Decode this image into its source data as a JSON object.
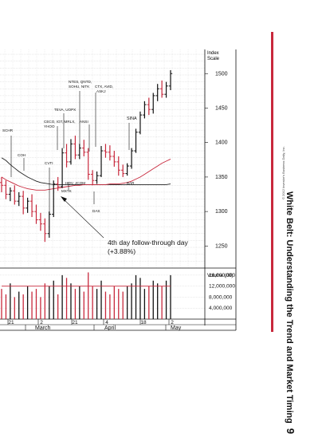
{
  "page": {
    "side_title": "White Belt: Understanding the Trend and Market Timing",
    "page_number": "9",
    "copyright": "© 2012 Investor's Business Daily, Inc.",
    "accent_color": "#c8283c"
  },
  "chart_data": {
    "type": "candlestick",
    "title": "",
    "price_axis": {
      "label_line1": "Index",
      "label_line2": "Scale",
      "ticks": [
        1250,
        1300,
        1350,
        1400,
        1450,
        1500
      ],
      "ylim": [
        1218,
        1535
      ]
    },
    "volume_axis": {
      "label": "Volume (00)",
      "ticks": [
        "16,000,000",
        "12,000,000",
        "8,000,000",
        "4,000,000"
      ],
      "tick_values": [
        16000000,
        12000000,
        8000000,
        4000000
      ],
      "ylim": [
        0,
        18000000
      ]
    },
    "x_axis": {
      "day_labels": [
        "21",
        "2",
        "21",
        "4",
        "18",
        "2"
      ],
      "month_labels": [
        "March",
        "April",
        "May"
      ]
    },
    "grid": true,
    "annotations": {
      "leaders": [
        {
          "text": "SCHR"
        },
        {
          "text": "COH"
        },
        {
          "text": "CVTI"
        },
        {
          "text": "CECO, IGT, MRLX,"
        },
        {
          "text": "YHOO"
        },
        {
          "text": "TEVA, UOPX"
        },
        {
          "text": "NTES, QNTD,"
        },
        {
          "text": "SOHU, NITK"
        },
        {
          "text": "CTX, AVID,"
        },
        {
          "text": "ASKJ"
        },
        {
          "text": "ANSI"
        },
        {
          "text": "HOV, JCOM"
        },
        {
          "text": "MXTK"
        },
        {
          "text": "SINA"
        },
        {
          "text": "BAR"
        },
        {
          "text": "DAS"
        }
      ],
      "callout_line1": "4th day follow-through day",
      "callout_line2": "(+3.88%)"
    },
    "candles": [
      {
        "o": 1342,
        "h": 1350,
        "c": 1338,
        "l": 1328,
        "up": false
      },
      {
        "o": 1338,
        "h": 1345,
        "c": 1325,
        "l": 1318,
        "up": false
      },
      {
        "o": 1325,
        "h": 1335,
        "c": 1330,
        "l": 1315,
        "up": true
      },
      {
        "o": 1330,
        "h": 1338,
        "c": 1315,
        "l": 1310,
        "up": false
      },
      {
        "o": 1315,
        "h": 1328,
        "c": 1322,
        "l": 1308,
        "up": true
      },
      {
        "o": 1322,
        "h": 1330,
        "c": 1305,
        "l": 1296,
        "up": false
      },
      {
        "o": 1305,
        "h": 1320,
        "c": 1315,
        "l": 1298,
        "up": true
      },
      {
        "o": 1315,
        "h": 1325,
        "c": 1300,
        "l": 1292,
        "up": false
      },
      {
        "o": 1300,
        "h": 1310,
        "c": 1288,
        "l": 1282,
        "up": false
      },
      {
        "o": 1288,
        "h": 1298,
        "c": 1282,
        "l": 1272,
        "up": false
      },
      {
        "o": 1282,
        "h": 1290,
        "c": 1268,
        "l": 1256,
        "up": false
      },
      {
        "o": 1268,
        "h": 1300,
        "c": 1296,
        "l": 1262,
        "up": true
      },
      {
        "o": 1296,
        "h": 1345,
        "c": 1340,
        "l": 1292,
        "up": true
      },
      {
        "o": 1340,
        "h": 1350,
        "c": 1336,
        "l": 1330,
        "up": false
      },
      {
        "o": 1336,
        "h": 1392,
        "c": 1385,
        "l": 1334,
        "up": true
      },
      {
        "o": 1385,
        "h": 1398,
        "c": 1372,
        "l": 1364,
        "up": false
      },
      {
        "o": 1372,
        "h": 1405,
        "c": 1398,
        "l": 1368,
        "up": true
      },
      {
        "o": 1398,
        "h": 1410,
        "c": 1382,
        "l": 1376,
        "up": false
      },
      {
        "o": 1382,
        "h": 1398,
        "c": 1392,
        "l": 1376,
        "up": true
      },
      {
        "o": 1392,
        "h": 1404,
        "c": 1386,
        "l": 1380,
        "up": false
      },
      {
        "o": 1386,
        "h": 1392,
        "c": 1354,
        "l": 1346,
        "up": false
      },
      {
        "o": 1354,
        "h": 1360,
        "c": 1345,
        "l": 1338,
        "up": false
      },
      {
        "o": 1345,
        "h": 1358,
        "c": 1352,
        "l": 1340,
        "up": true
      },
      {
        "o": 1352,
        "h": 1395,
        "c": 1388,
        "l": 1350,
        "up": true
      },
      {
        "o": 1388,
        "h": 1398,
        "c": 1386,
        "l": 1378,
        "up": false
      },
      {
        "o": 1386,
        "h": 1396,
        "c": 1380,
        "l": 1374,
        "up": false
      },
      {
        "o": 1380,
        "h": 1388,
        "c": 1372,
        "l": 1365,
        "up": false
      },
      {
        "o": 1372,
        "h": 1380,
        "c": 1360,
        "l": 1352,
        "up": false
      },
      {
        "o": 1360,
        "h": 1368,
        "c": 1355,
        "l": 1350,
        "up": false
      },
      {
        "o": 1355,
        "h": 1370,
        "c": 1366,
        "l": 1352,
        "up": true
      },
      {
        "o": 1366,
        "h": 1392,
        "c": 1388,
        "l": 1362,
        "up": true
      },
      {
        "o": 1388,
        "h": 1420,
        "c": 1415,
        "l": 1385,
        "up": true
      },
      {
        "o": 1415,
        "h": 1445,
        "c": 1440,
        "l": 1412,
        "up": true
      },
      {
        "o": 1440,
        "h": 1460,
        "c": 1455,
        "l": 1435,
        "up": true
      },
      {
        "o": 1455,
        "h": 1465,
        "c": 1448,
        "l": 1440,
        "up": false
      },
      {
        "o": 1448,
        "h": 1472,
        "c": 1468,
        "l": 1442,
        "up": true
      },
      {
        "o": 1468,
        "h": 1485,
        "c": 1478,
        "l": 1460,
        "up": true
      },
      {
        "o": 1478,
        "h": 1490,
        "c": 1470,
        "l": 1465,
        "up": false
      },
      {
        "o": 1470,
        "h": 1488,
        "c": 1482,
        "l": 1465,
        "up": true
      },
      {
        "o": 1482,
        "h": 1505,
        "c": 1500,
        "l": 1476,
        "up": true
      }
    ],
    "volume": [
      11,
      9,
      13,
      8,
      10,
      9,
      12,
      10,
      11,
      8,
      13,
      12,
      14,
      9,
      16,
      15,
      13,
      11,
      12,
      10,
      17,
      12,
      11,
      14,
      10,
      9,
      12,
      11,
      10,
      12,
      13,
      16,
      15,
      11,
      12,
      14,
      13,
      12,
      14,
      16
    ],
    "volume_avg": [
      12,
      12,
      12,
      12,
      12,
      12,
      12,
      12,
      12,
      12,
      12,
      12,
      12,
      12,
      12,
      12,
      12,
      12,
      12,
      12,
      12,
      12,
      12,
      12,
      12,
      12,
      12,
      12,
      12,
      12,
      12,
      12,
      12,
      12,
      12,
      12,
      12,
      12,
      12,
      12
    ],
    "ma_black": [
      1378,
      1374,
      1368,
      1363,
      1358,
      1354,
      1350,
      1347,
      1344,
      1342,
      1341,
      1340,
      1339,
      1339,
      1339,
      1339,
      1339,
      1339,
      1339,
      1339,
      1339,
      1339,
      1339,
      1339,
      1339,
      1339,
      1339,
      1339,
      1339,
      1339,
      1339,
      1339,
      1339,
      1339,
      1339,
      1339,
      1339,
      1339,
      1339,
      1340
    ],
    "ma_red": [
      1350,
      1346,
      1343,
      1340,
      1337,
      1335,
      1333,
      1332,
      1331,
      1331,
      1331,
      1332,
      1333,
      1334,
      1335,
      1336,
      1337,
      1338,
      1338,
      1339,
      1339,
      1339,
      1339,
      1339,
      1339,
      1340,
      1340,
      1340,
      1341,
      1342,
      1344,
      1347,
      1350,
      1354,
      1358,
      1362,
      1366,
      1370,
      1373,
      1376
    ]
  }
}
